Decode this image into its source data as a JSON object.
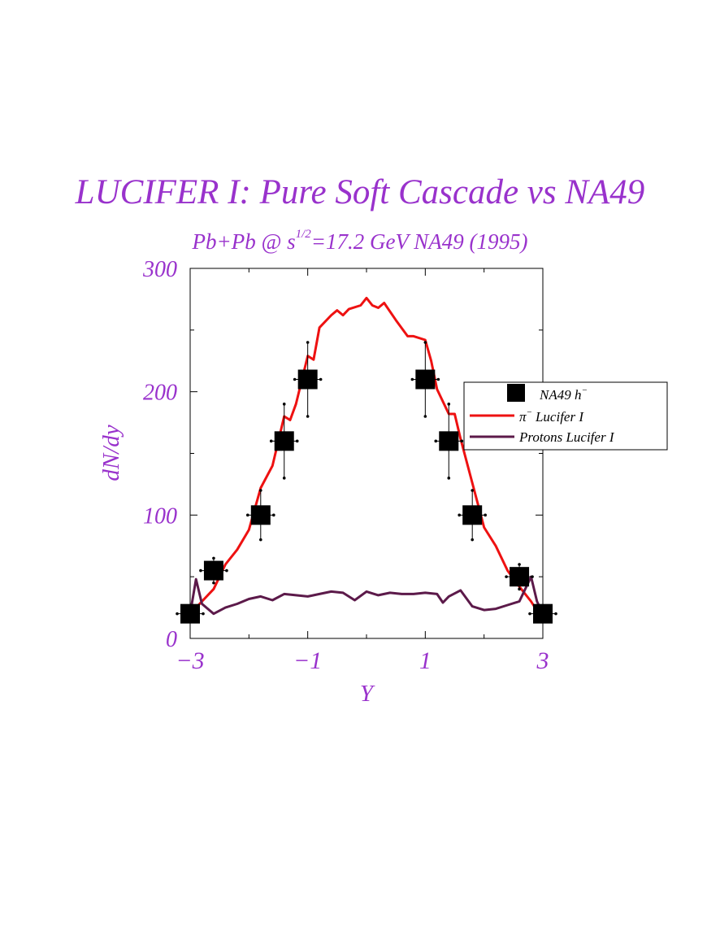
{
  "title": "LUCIFER I: Pure Soft Cascade vs NA49",
  "subtitle": {
    "prefix": "Pb+Pb @ s",
    "superscript": "1/2",
    "suffix": "=17.2 GeV NA49 (1995)"
  },
  "colors": {
    "text": "#9932cc",
    "pion_line": "#ee1111",
    "proton_line": "#5c1a4a",
    "data_marker": "#000000"
  },
  "chart_data": {
    "type": "line",
    "title": "LUCIFER I: Pure Soft Cascade vs NA49",
    "xlabel": "Y",
    "ylabel": "dN/dy",
    "xlim": [
      -3,
      3
    ],
    "ylim": [
      0,
      300
    ],
    "xticks": [
      "−3",
      "−1",
      "1",
      "3"
    ],
    "xtick_values": [
      -3,
      -1,
      1,
      3
    ],
    "yticks": [
      "0",
      "100",
      "200",
      "300"
    ],
    "ytick_values": [
      0,
      100,
      200,
      300
    ],
    "grid": false,
    "legend_position": "right",
    "series": [
      {
        "name": "NA49 h",
        "name_superscript": "−",
        "kind": "marker",
        "x": [
          -3.0,
          -2.6,
          -1.8,
          -1.4,
          -1.0,
          1.0,
          1.4,
          1.8,
          2.6,
          3.0
        ],
        "y": [
          20,
          55,
          100,
          160,
          210,
          210,
          160,
          100,
          50,
          20
        ],
        "yerr_low": [
          20,
          45,
          80,
          130,
          180,
          180,
          130,
          80,
          40,
          20
        ],
        "yerr_high": [
          20,
          65,
          120,
          190,
          240,
          240,
          190,
          120,
          60,
          20
        ]
      },
      {
        "name": "Lucifer I",
        "name_prefix": "π",
        "name_superscript": "−",
        "kind": "line",
        "x": [
          -3.0,
          -2.8,
          -2.6,
          -2.4,
          -2.2,
          -2.0,
          -1.8,
          -1.6,
          -1.4,
          -1.3,
          -1.2,
          -1.0,
          -0.9,
          -0.8,
          -0.6,
          -0.5,
          -0.4,
          -0.3,
          -0.1,
          0.0,
          0.1,
          0.2,
          0.3,
          0.5,
          0.7,
          0.8,
          1.0,
          1.1,
          1.2,
          1.4,
          1.5,
          1.6,
          1.8,
          2.0,
          2.2,
          2.4,
          2.6,
          2.8,
          3.0
        ],
        "y": [
          20,
          30,
          40,
          60,
          72,
          88,
          122,
          140,
          180,
          177,
          190,
          229,
          226,
          252,
          262,
          266,
          262,
          267,
          270,
          276,
          270,
          268,
          272,
          258,
          245,
          245,
          242,
          225,
          202,
          182,
          182,
          162,
          126,
          90,
          75,
          55,
          42,
          30,
          15
        ]
      },
      {
        "name": "Protons Lucifer I",
        "kind": "line",
        "x": [
          -3.0,
          -2.9,
          -2.8,
          -2.6,
          -2.4,
          -2.2,
          -2.0,
          -1.8,
          -1.6,
          -1.4,
          -1.2,
          -1.0,
          -0.8,
          -0.6,
          -0.4,
          -0.2,
          0.0,
          0.2,
          0.4,
          0.6,
          0.8,
          1.0,
          1.2,
          1.3,
          1.4,
          1.6,
          1.8,
          2.0,
          2.2,
          2.4,
          2.6,
          2.8,
          2.9,
          3.0
        ],
        "y": [
          20,
          48,
          28,
          20,
          25,
          28,
          32,
          34,
          31,
          36,
          35,
          34,
          36,
          38,
          37,
          31,
          38,
          35,
          37,
          36,
          36,
          37,
          36,
          29,
          34,
          39,
          26,
          23,
          24,
          27,
          30,
          50,
          30,
          20
        ]
      }
    ]
  }
}
